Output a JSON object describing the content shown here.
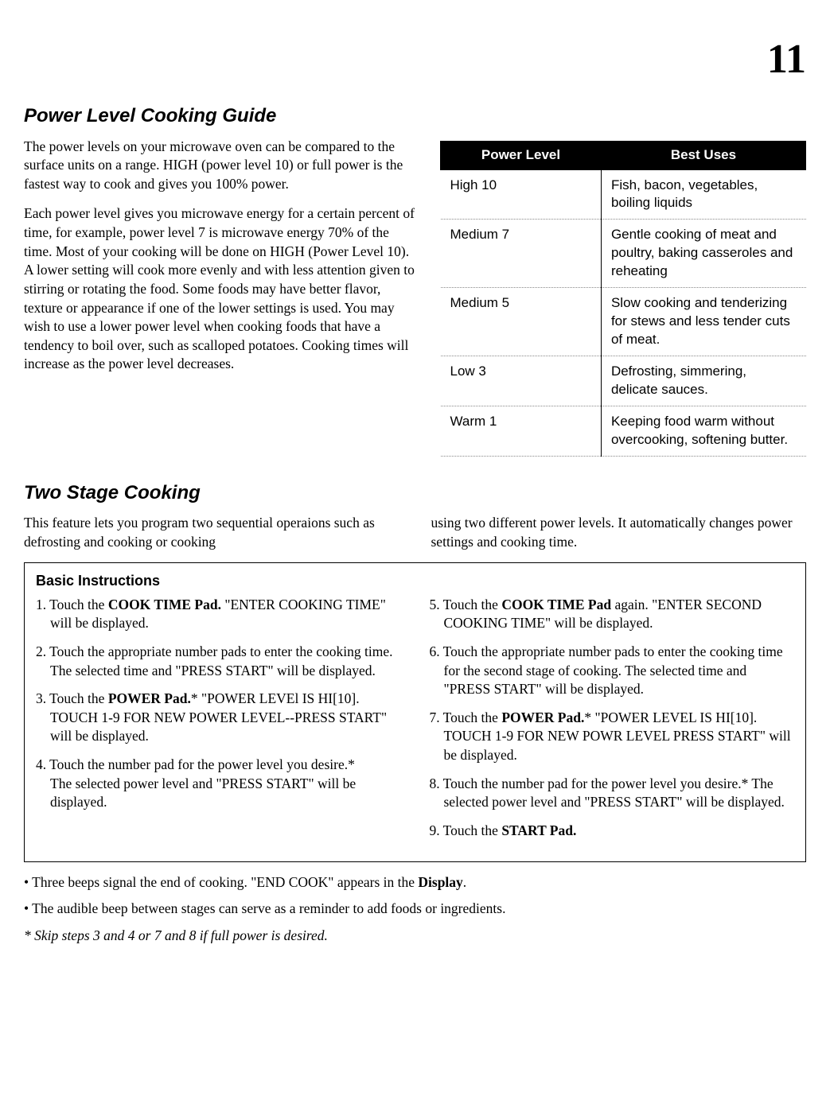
{
  "page_number": "11",
  "section1": {
    "title": "Power Level Cooking Guide",
    "para1": "The power levels on your microwave oven can be compared to the surface units on a range. HIGH (power level 10) or full power is the fastest way to cook and gives you 100% power.",
    "para2": "Each power level gives you microwave energy for a certain percent of time, for example, power level 7 is microwave energy 70% of the time. Most of your cooking will be done on HIGH (Power Level 10). A lower setting will cook more evenly and with less attention given to stirring or rotating the food. Some foods may have better flavor, texture or appearance if one of the lower settings is used. You may wish to use a lower power level when cooking foods that have a tendency to boil over, such as scalloped potatoes. Cooking times will increase as the power level decreases."
  },
  "table": {
    "header_level": "Power Level",
    "header_uses": "Best Uses",
    "rows": [
      {
        "level": "High 10",
        "uses": "Fish, bacon, vegetables, boiling liquids"
      },
      {
        "level": "Medium 7",
        "uses": "Gentle cooking of meat and poultry, baking casseroles and reheating"
      },
      {
        "level": "Medium 5",
        "uses": "Slow cooking and tenderizing for stews and less tender cuts of meat."
      },
      {
        "level": "Low 3",
        "uses": "Defrosting, simmering, delicate sauces."
      },
      {
        "level": "Warm 1",
        "uses": "Keeping food warm without overcooking, softening butter."
      }
    ]
  },
  "section2": {
    "title": "Two Stage Cooking",
    "intro_left": "This feature lets you program two sequential operaions such as defrosting and cooking or cooking",
    "intro_right": "using two different power levels. It automatically changes power settings and cooking time."
  },
  "instructions": {
    "title": "Basic Instructions",
    "step1_a": "1. Touch the ",
    "step1_b": "COOK TIME Pad.",
    "step1_c": " \"ENTER COOKING TIME\" will be displayed.",
    "step2": "2. Touch the appropriate number pads to enter the cooking time. The selected time and \"PRESS START\" will be displayed.",
    "step3_a": "3. Touch the ",
    "step3_b": "POWER Pad.",
    "step3_c": "* \"POWER LEVEl IS HI[10]. TOUCH 1-9 FOR NEW POWER LEVEL--PRESS START\" will be displayed.",
    "step4_a": "4. Touch the number pad for the power level you desire.*",
    "step4_b": "The selected power level and \"PRESS START\" will be displayed.",
    "step5_a": "5. Touch the ",
    "step5_b": "COOK TIME Pad",
    "step5_c": " again. \"ENTER SECOND COOKING TIME\" will be displayed.",
    "step6": "6. Touch the appropriate number pads to enter the cooking time for the second stage of cooking. The selected time and \"PRESS START\" will be displayed.",
    "step7_a": "7. Touch the ",
    "step7_b": "POWER Pad.",
    "step7_c": "* \"POWER LEVEL IS HI[10]. TOUCH 1-9 FOR NEW POWR LEVEL PRESS START\" will be displayed.",
    "step8_a": "8. Touch the number pad for the power level you desire.* The selected power level and \"PRESS START\" will be displayed.",
    "step9_a": "9. Touch the ",
    "step9_b": "START Pad."
  },
  "notes": {
    "n1_a": "• Three beeps signal the end of cooking. \"END COOK\" appears in the ",
    "n1_b": "Display",
    "n1_c": ".",
    "n2": "• The audible beep between stages can serve as a reminder to add foods or ingredients.",
    "footnote": "* Skip steps 3 and 4 or 7 and 8 if full power is desired."
  }
}
